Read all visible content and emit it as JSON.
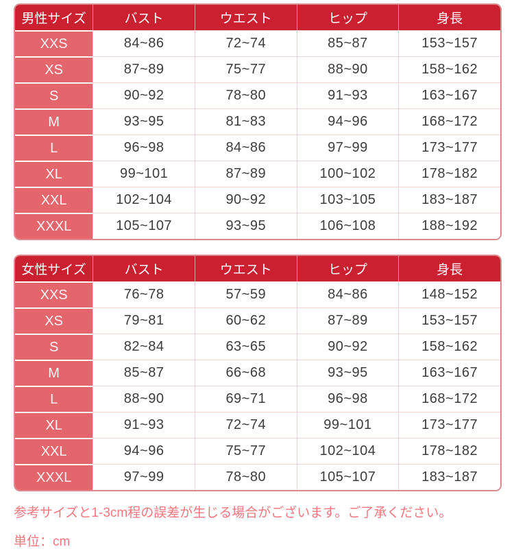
{
  "theme": {
    "header_bg": "#cb202f",
    "size_col_bg": "#e5656c",
    "header_text": "#ffffff",
    "cell_text": "#3c3c3c",
    "grid_line": "#f3d2d3",
    "outer_border": "#db8a8e",
    "note_text": "#f0787e"
  },
  "tables": [
    {
      "id": "mens-size-table",
      "headers": [
        "男性サイズ",
        "バスト",
        "ウエスト",
        "ヒップ",
        "身長"
      ],
      "rows": [
        {
          "size": "XXS",
          "values": [
            "84~86",
            "72~74",
            "85~87",
            "153~157"
          ]
        },
        {
          "size": "XS",
          "values": [
            "87~89",
            "75~77",
            "88~90",
            "158~162"
          ]
        },
        {
          "size": "S",
          "values": [
            "90~92",
            "78~80",
            "91~93",
            "163~167"
          ]
        },
        {
          "size": "M",
          "values": [
            "93~95",
            "81~83",
            "94~96",
            "168~172"
          ]
        },
        {
          "size": "L",
          "values": [
            "96~98",
            "84~86",
            "97~99",
            "173~177"
          ]
        },
        {
          "size": "XL",
          "values": [
            "99~101",
            "87~89",
            "100~102",
            "178~182"
          ]
        },
        {
          "size": "XXL",
          "values": [
            "102~104",
            "90~92",
            "103~105",
            "183~187"
          ]
        },
        {
          "size": "XXXL",
          "values": [
            "105~107",
            "93~95",
            "106~108",
            "188~192"
          ]
        }
      ]
    },
    {
      "id": "womens-size-table",
      "headers": [
        "女性サイズ",
        "バスト",
        "ウエスト",
        "ヒップ",
        "身長"
      ],
      "rows": [
        {
          "size": "XXS",
          "values": [
            "76~78",
            "57~59",
            "84~86",
            "148~152"
          ]
        },
        {
          "size": "XS",
          "values": [
            "79~81",
            "60~62",
            "87~89",
            "153~157"
          ]
        },
        {
          "size": "S",
          "values": [
            "82~84",
            "63~65",
            "90~92",
            "158~162"
          ]
        },
        {
          "size": "M",
          "values": [
            "85~87",
            "66~68",
            "93~95",
            "163~167"
          ]
        },
        {
          "size": "L",
          "values": [
            "88~90",
            "69~71",
            "96~98",
            "168~172"
          ]
        },
        {
          "size": "XL",
          "values": [
            "91~93",
            "72~74",
            "99~101",
            "173~177"
          ]
        },
        {
          "size": "XXL",
          "values": [
            "94~96",
            "75~77",
            "102~104",
            "178~182"
          ]
        },
        {
          "size": "XXXL",
          "values": [
            "97~99",
            "78~80",
            "105~107",
            "183~187"
          ]
        }
      ]
    }
  ],
  "notes": {
    "line1": "参考サイズと1-3cm程の誤差が生じる場合がございます。ご了承ください。",
    "line2": "単位：cm"
  }
}
